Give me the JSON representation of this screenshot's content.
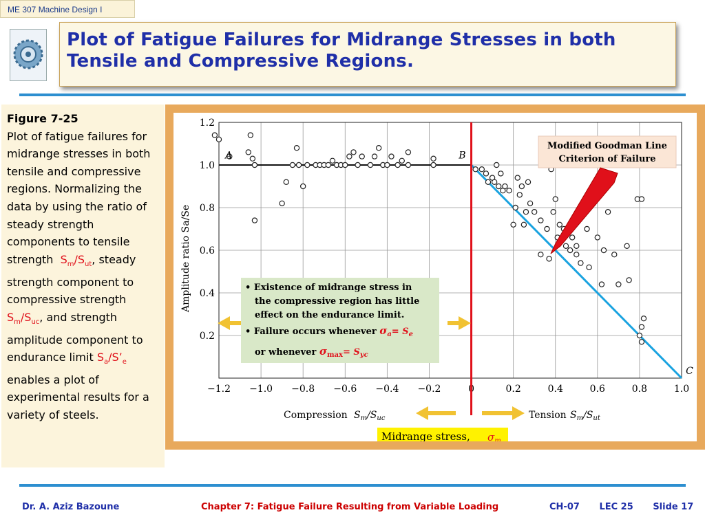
{
  "header": {
    "course": "ME 307 Machine Design I",
    "title_line1": "Plot of Fatigue Failures for Midrange Stresses in both",
    "title_line2": "Tensile and Compressive Regions."
  },
  "sidebar": {
    "figure_label": "Figure 7-25",
    "line1": "Plot of fatigue failures for midrange stresses in both tensile and compressive regions. Normalizing the data by using the ratio of steady strength components to tensile strength",
    "ratio1": "Sm/Sut",
    "line2": ", steady strength component to compressive strength",
    "ratio2": "Sm/Suc",
    "line3": ", and strength amplitude component to endurance limit",
    "ratio3": "Sa/S’e",
    "line4": " enables a plot of experimental results for a variety of steels."
  },
  "footer": {
    "author": "Dr. A. Aziz Bazoune",
    "chapter": "Chapter 7: Fatigue Failure Resulting from Variable Loading",
    "ch": "CH-07",
    "lec": "LEC 25",
    "slide": "Slide 17"
  },
  "colors": {
    "title_text": "#1f2fa8",
    "accent_rule": "#2d8fd0",
    "red_line": "#e0101a",
    "goodman_line": "#1aa3e0",
    "arrow_yellow": "#f1c232",
    "note_box": "#d9e8c8",
    "callout_box": "#fbe6d6",
    "frame": "#e8a95c"
  },
  "chart_data": {
    "type": "scatter",
    "xlabel_left": "Compression",
    "xlabel_right": "Tension",
    "ylabel": "Amplitude ratio Sa/Se",
    "xlim": [
      -1.2,
      1.0
    ],
    "ylim": [
      0,
      1.2
    ],
    "x_ticks": [
      "−1.2",
      "−1.0",
      "−0.8",
      "−0.6",
      "−0.4",
      "−0.2",
      "0",
      "0.2",
      "0.4",
      "0.6",
      "0.8",
      "1.0"
    ],
    "y_ticks": [
      "0.2",
      "0.4",
      "0.6",
      "0.8",
      "1.0",
      "1.2"
    ],
    "point_labels": {
      "A": "A",
      "B": "B",
      "C": "C"
    },
    "callout": "Modified Goodman Line Criterion of Failure",
    "notes": [
      "Existence of midrange stress in the compressive region has little effect on the endurance limit.",
      "Failure occurs whenever"
    ],
    "note_eq1": "σa= Se",
    "note_or": "or whenever",
    "note_eq2": "σmax= Syc",
    "midrange_label": "Midrange stress,",
    "midrange_symbol": "σm",
    "points": [
      [
        -1.22,
        1.14
      ],
      [
        -1.2,
        1.12
      ],
      [
        -1.15,
        1.04
      ],
      [
        -1.05,
        1.14
      ],
      [
        -1.06,
        1.06
      ],
      [
        -1.04,
        1.03
      ],
      [
        -1.03,
        1.0
      ],
      [
        -1.03,
        0.74
      ],
      [
        -0.9,
        0.82
      ],
      [
        -0.88,
        0.92
      ],
      [
        -0.85,
        1.0
      ],
      [
        -0.83,
        1.08
      ],
      [
        -0.82,
        1.0
      ],
      [
        -0.8,
        0.9
      ],
      [
        -0.78,
        1.0
      ],
      [
        -0.74,
        1.0
      ],
      [
        -0.72,
        1.0
      ],
      [
        -0.7,
        1.0
      ],
      [
        -0.68,
        1.0
      ],
      [
        -0.66,
        1.02
      ],
      [
        -0.64,
        1.0
      ],
      [
        -0.62,
        1.0
      ],
      [
        -0.6,
        1.0
      ],
      [
        -0.58,
        1.04
      ],
      [
        -0.56,
        1.06
      ],
      [
        -0.54,
        1.0
      ],
      [
        -0.52,
        1.04
      ],
      [
        -0.48,
        1.0
      ],
      [
        -0.46,
        1.04
      ],
      [
        -0.44,
        1.08
      ],
      [
        -0.42,
        1.0
      ],
      [
        -0.4,
        1.0
      ],
      [
        -0.38,
        1.04
      ],
      [
        -0.35,
        1.0
      ],
      [
        -0.33,
        1.02
      ],
      [
        -0.3,
        1.0
      ],
      [
        -0.3,
        1.06
      ],
      [
        -0.18,
        1.03
      ],
      [
        -0.18,
        1.0
      ],
      [
        0.02,
        0.98
      ],
      [
        0.05,
        0.98
      ],
      [
        0.07,
        0.96
      ],
      [
        0.08,
        0.92
      ],
      [
        0.1,
        0.94
      ],
      [
        0.11,
        0.92
      ],
      [
        0.12,
        1.0
      ],
      [
        0.13,
        0.9
      ],
      [
        0.14,
        0.96
      ],
      [
        0.15,
        0.88
      ],
      [
        0.16,
        0.9
      ],
      [
        0.18,
        0.88
      ],
      [
        0.2,
        0.72
      ],
      [
        0.21,
        0.8
      ],
      [
        0.22,
        0.94
      ],
      [
        0.23,
        0.86
      ],
      [
        0.24,
        0.9
      ],
      [
        0.25,
        0.72
      ],
      [
        0.26,
        0.78
      ],
      [
        0.27,
        0.92
      ],
      [
        0.28,
        0.82
      ],
      [
        0.3,
        0.78
      ],
      [
        0.33,
        0.74
      ],
      [
        0.33,
        0.58
      ],
      [
        0.36,
        0.7
      ],
      [
        0.37,
        0.56
      ],
      [
        0.38,
        0.98
      ],
      [
        0.39,
        0.78
      ],
      [
        0.4,
        0.84
      ],
      [
        0.41,
        0.66
      ],
      [
        0.42,
        0.72
      ],
      [
        0.44,
        0.7
      ],
      [
        0.45,
        0.62
      ],
      [
        0.47,
        0.6
      ],
      [
        0.48,
        0.66
      ],
      [
        0.5,
        0.62
      ],
      [
        0.5,
        0.58
      ],
      [
        0.52,
        0.54
      ],
      [
        0.55,
        0.7
      ],
      [
        0.56,
        0.52
      ],
      [
        0.6,
        0.66
      ],
      [
        0.62,
        0.44
      ],
      [
        0.63,
        0.6
      ],
      [
        0.65,
        0.78
      ],
      [
        0.68,
        0.58
      ],
      [
        0.7,
        0.44
      ],
      [
        0.74,
        0.62
      ],
      [
        0.75,
        0.46
      ],
      [
        0.79,
        0.84
      ],
      [
        0.81,
        0.84
      ],
      [
        0.82,
        0.28
      ],
      [
        0.81,
        0.24
      ],
      [
        0.8,
        0.2
      ],
      [
        0.81,
        0.17
      ]
    ]
  }
}
